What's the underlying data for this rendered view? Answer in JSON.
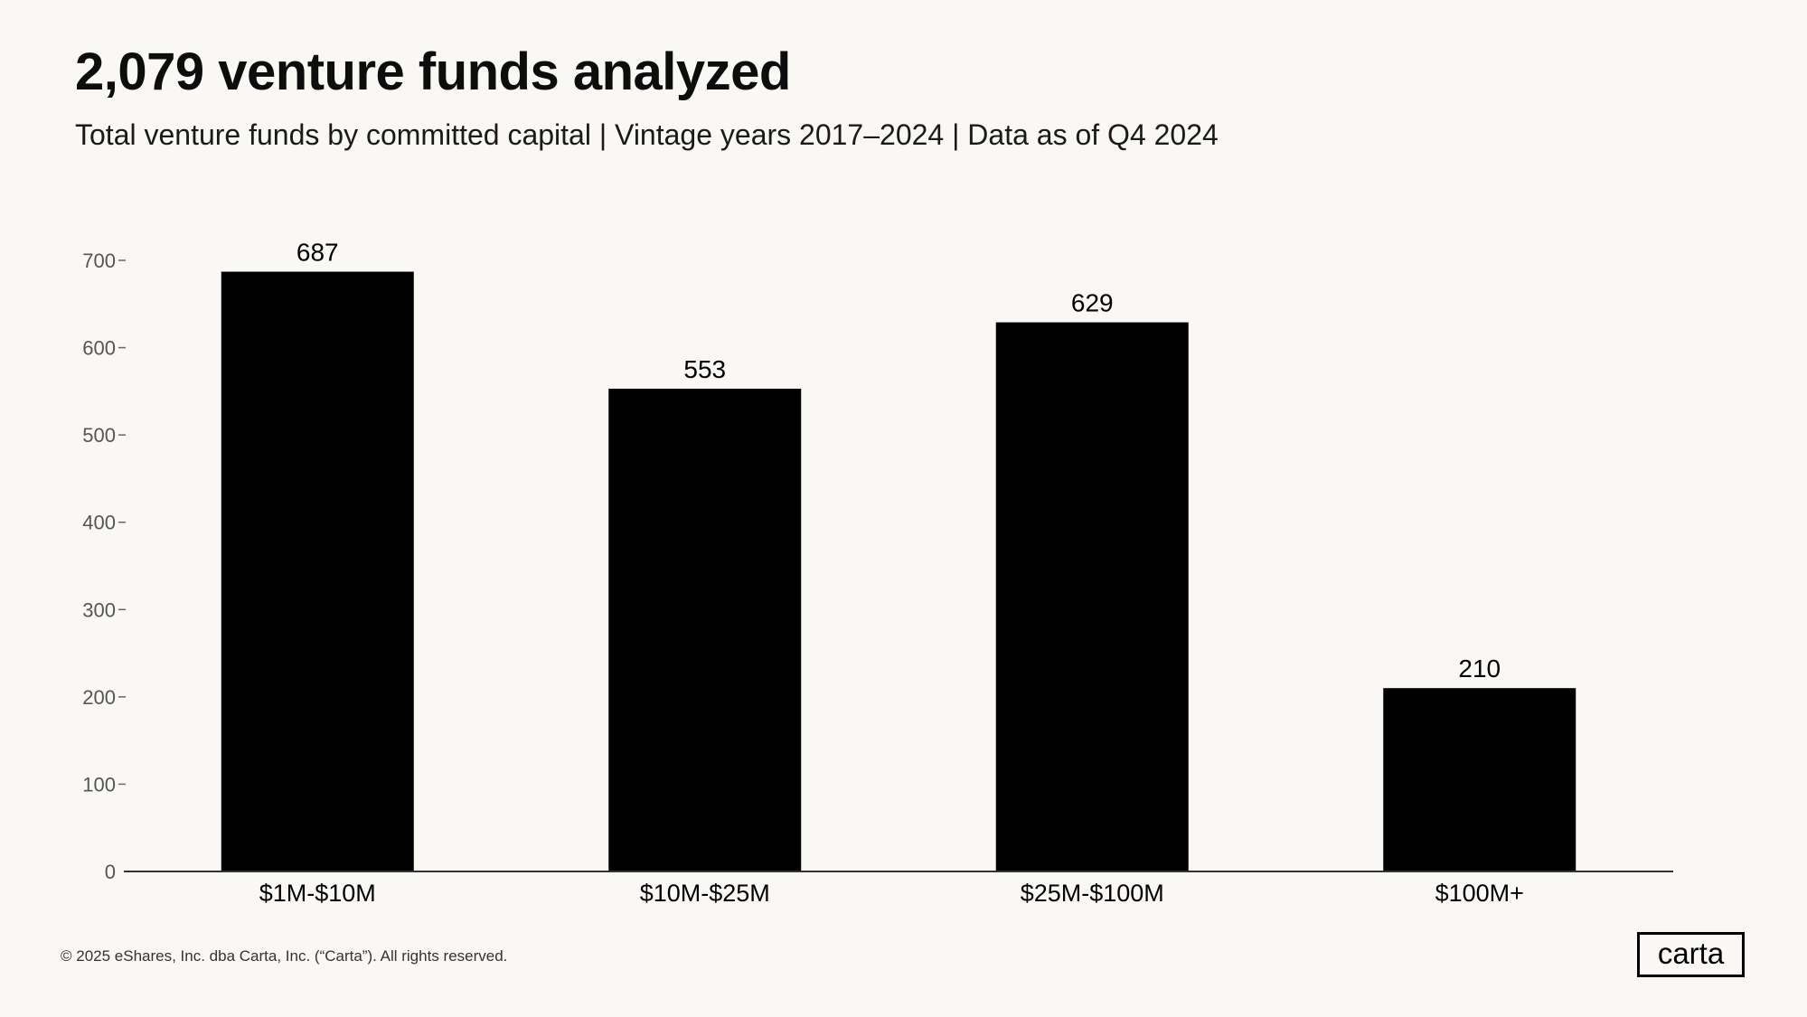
{
  "header": {
    "title": "2,079 venture funds analyzed",
    "subtitle": "Total venture funds by committed capital | Vintage years 2017–2024 | Data as of Q4 2024"
  },
  "chart_data": {
    "type": "bar",
    "title": "2,079 venture funds analyzed",
    "subtitle": "Total venture funds by committed capital | Vintage years 2017–2024 | Data as of Q4 2024",
    "categories": [
      "$1M-$10M",
      "$10M-$25M",
      "$25M-$100M",
      "$100M+"
    ],
    "values": [
      687,
      553,
      629,
      210
    ],
    "data_labels": [
      "687",
      "553",
      "629",
      "210"
    ],
    "xlabel": "",
    "ylabel": "",
    "ylim": [
      0,
      700
    ],
    "yticks": [
      0,
      100,
      200,
      300,
      400,
      500,
      600,
      700
    ],
    "ytick_labels": [
      "0",
      "100",
      "200",
      "300",
      "400",
      "500",
      "600",
      "700"
    ],
    "grid": false,
    "legend": "none",
    "bar_color": "#000000"
  },
  "footer": {
    "copyright": "© 2025 eShares, Inc. dba Carta, Inc. (“Carta”). All rights reserved.",
    "logo_text": "carta"
  },
  "colors": {
    "background": "#faf8f4",
    "bar": "#000000",
    "axis": "#333333"
  }
}
